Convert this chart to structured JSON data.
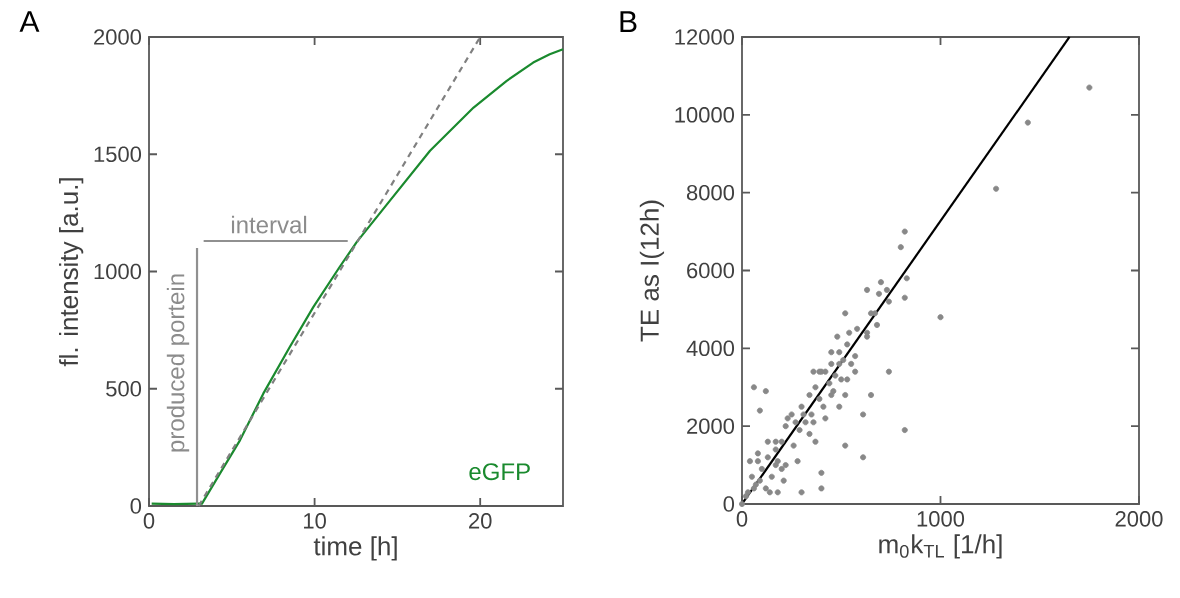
{
  "chart_data": [
    {
      "type": "line",
      "xlabel": "time [h]",
      "ylabel": "fl. intensity [a.u.]",
      "xlim": [
        0,
        25
      ],
      "ylim": [
        0,
        2000
      ],
      "xticks": [
        0,
        10,
        20
      ],
      "yticks": [
        0,
        500,
        1000,
        1500,
        2000
      ],
      "series": [
        {
          "name": "eGFP",
          "color": "#1a8a2e",
          "x": [
            0.16,
            1.5,
            2.98,
            3.2,
            4.29,
            5.5,
            6.9,
            8.5,
            9.92,
            11.5,
            12.54,
            14.55,
            16.97,
            19.6,
            21.6,
            23.2,
            24.2,
            25
          ],
          "values": [
            10,
            8,
            10,
            10,
            139,
            281,
            479,
            678,
            848,
            1018,
            1125,
            1302,
            1515,
            1699,
            1813,
            1891,
            1926,
            1948
          ]
        },
        {
          "type": "line",
          "color": "#808080",
          "line_style": "dashed",
          "x": [
            3,
            20
          ],
          "values": [
            0,
            2000
          ]
        },
        {
          "type": "line",
          "color": "#909090",
          "x": [
            2.9,
            2.9
          ],
          "values": [
            0,
            1100
          ]
        },
        {
          "type": "line",
          "color": "#909090",
          "x": [
            3.3,
            12
          ],
          "values": [
            1130,
            1130
          ]
        }
      ],
      "annotations": [
        "A",
        "produced portein",
        "interval"
      ]
    },
    {
      "type": "scatter",
      "xlabel": "m$_{0}$k$_{TL}$ [1/h]",
      "ylabel": "TE as I(12h)",
      "xlim": [
        0,
        2000
      ],
      "ylim": [
        0,
        12000
      ],
      "xticks": [
        0,
        1000,
        2000
      ],
      "yticks": [
        0,
        2000,
        4000,
        6000,
        8000,
        10000,
        12000
      ],
      "series": [
        {
          "color": "#888888",
          "marker": "circle",
          "x": [
            1750,
            1440,
            1280,
            820,
            800,
            830,
            700,
            730,
            690,
            820,
            740,
            1000,
            630,
            520,
            650,
            670,
            680,
            630,
            540,
            580,
            480,
            530,
            450,
            490,
            570,
            740,
            570,
            510,
            530,
            650,
            520,
            490,
            610,
            820,
            520,
            610,
            400,
            400,
            300,
            180,
            210,
            60,
            120,
            90,
            40,
            80,
            140,
            370,
            400,
            450,
            420,
            370,
            280,
            360,
            340,
            300,
            270,
            230,
            200,
            170,
            130,
            100,
            70,
            30,
            220,
            150,
            120,
            180,
            290,
            320,
            350,
            390,
            440,
            470,
            460,
            420,
            390,
            360,
            250,
            220,
            170,
            130,
            80,
            170,
            50,
            20,
            0,
            60,
            90,
            200,
            260,
            310,
            340,
            410,
            450,
            500,
            550,
            630,
            490
          ],
          "values": [
            10700,
            9800,
            8100,
            7000,
            6600,
            5800,
            5700,
            5500,
            5400,
            5300,
            5200,
            4800,
            5500,
            4900,
            4900,
            4900,
            4600,
            4400,
            4400,
            4500,
            4300,
            4100,
            3900,
            3900,
            3800,
            3400,
            3400,
            3700,
            3200,
            2800,
            2800,
            2500,
            2300,
            1900,
            1500,
            1200,
            800,
            400,
            300,
            300,
            600,
            3000,
            2900,
            2400,
            1100,
            1300,
            300,
            3000,
            3400,
            3600,
            2200,
            1600,
            1100,
            2100,
            2800,
            2500,
            2100,
            2200,
            1600,
            1400,
            1200,
            900,
            500,
            300,
            1000,
            700,
            400,
            1100,
            1900,
            2100,
            2300,
            2700,
            3100,
            3300,
            2900,
            3400,
            3400,
            3400,
            2300,
            2000,
            1600,
            1600,
            1100,
            1000,
            700,
            200,
            0,
            400,
            600,
            900,
            1500,
            2300,
            1800,
            2500,
            2800,
            3200,
            3600,
            4300,
            3600
          ]
        },
        {
          "type": "line",
          "color": "#000000",
          "x": [
            0,
            1650
          ],
          "values": [
            0,
            12000
          ]
        }
      ],
      "annotations": [
        "B"
      ]
    }
  ]
}
